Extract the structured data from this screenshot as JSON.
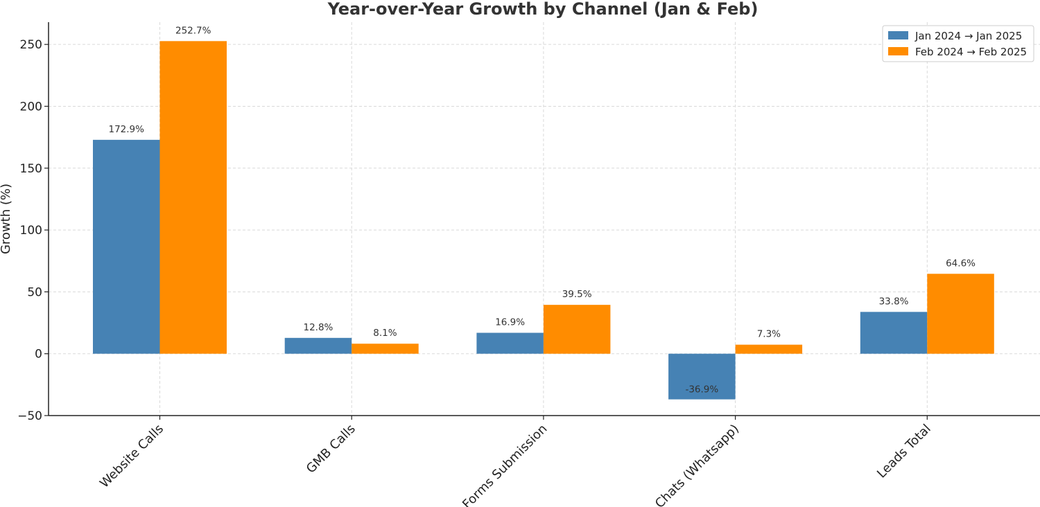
{
  "chart_data": {
    "type": "bar",
    "title": "Year-over-Year Growth by Channel (Jan & Feb)",
    "xlabel": "",
    "ylabel": "Growth (%)",
    "ylim": [
      -50,
      268
    ],
    "yticks": [
      -50,
      0,
      50,
      100,
      150,
      200,
      250
    ],
    "ytick_labels": [
      "−50",
      "0",
      "50",
      "100",
      "150",
      "200",
      "250"
    ],
    "grid": true,
    "legend_position": "top-right",
    "categories": [
      "Website Calls",
      "GMB Calls",
      "Forms Submission",
      "Chats (Whatsapp)",
      "Leads Total"
    ],
    "series": [
      {
        "name": "Jan 2024 → Jan 2025",
        "color": "#4682b4",
        "values": [
          172.9,
          12.8,
          16.9,
          -36.9,
          33.8
        ],
        "labels": [
          "172.9%",
          "12.8%",
          "16.9%",
          "-36.9%",
          "33.8%"
        ]
      },
      {
        "name": "Feb 2024 → Feb 2025",
        "color": "#ff8c00",
        "values": [
          252.7,
          8.1,
          39.5,
          7.3,
          64.6
        ],
        "labels": [
          "252.7%",
          "8.1%",
          "39.5%",
          "7.3%",
          "64.6%"
        ]
      }
    ]
  }
}
